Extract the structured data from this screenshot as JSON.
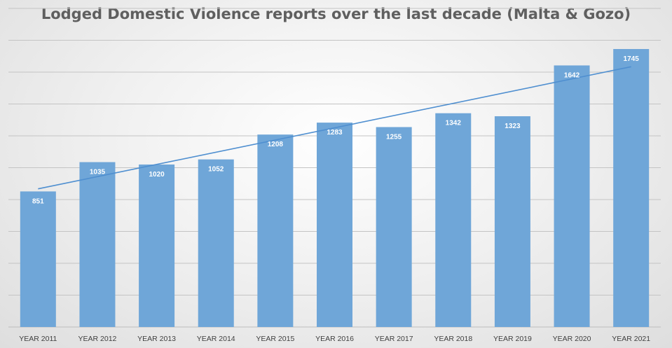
{
  "chart_data": {
    "type": "bar",
    "title": "Lodged Domestic Violence reports over the last decade (Malta & Gozo)",
    "categories": [
      "YEAR 2011",
      "YEAR 2012",
      "YEAR 2013",
      "YEAR 2014",
      "YEAR 2015",
      "YEAR 2016",
      "YEAR 2017",
      "YEAR 2018",
      "YEAR 2019",
      "YEAR 2020",
      "YEAR 2021"
    ],
    "series": [
      {
        "values": [
          851,
          1035,
          1020,
          1052,
          1208,
          1283,
          1255,
          1342,
          1323,
          1642,
          1745
        ]
      }
    ],
    "trendline": "linear",
    "ylim": [
      0,
      2000
    ],
    "grid": true,
    "xlabel": "",
    "ylabel": "",
    "colors": {
      "bar": "#6fa6d8",
      "trendline": "#4f8fd0",
      "grid": "#c4c4c4",
      "label": "#ffffff",
      "axis_text": "#404040",
      "title": "#5f5f5f"
    }
  }
}
